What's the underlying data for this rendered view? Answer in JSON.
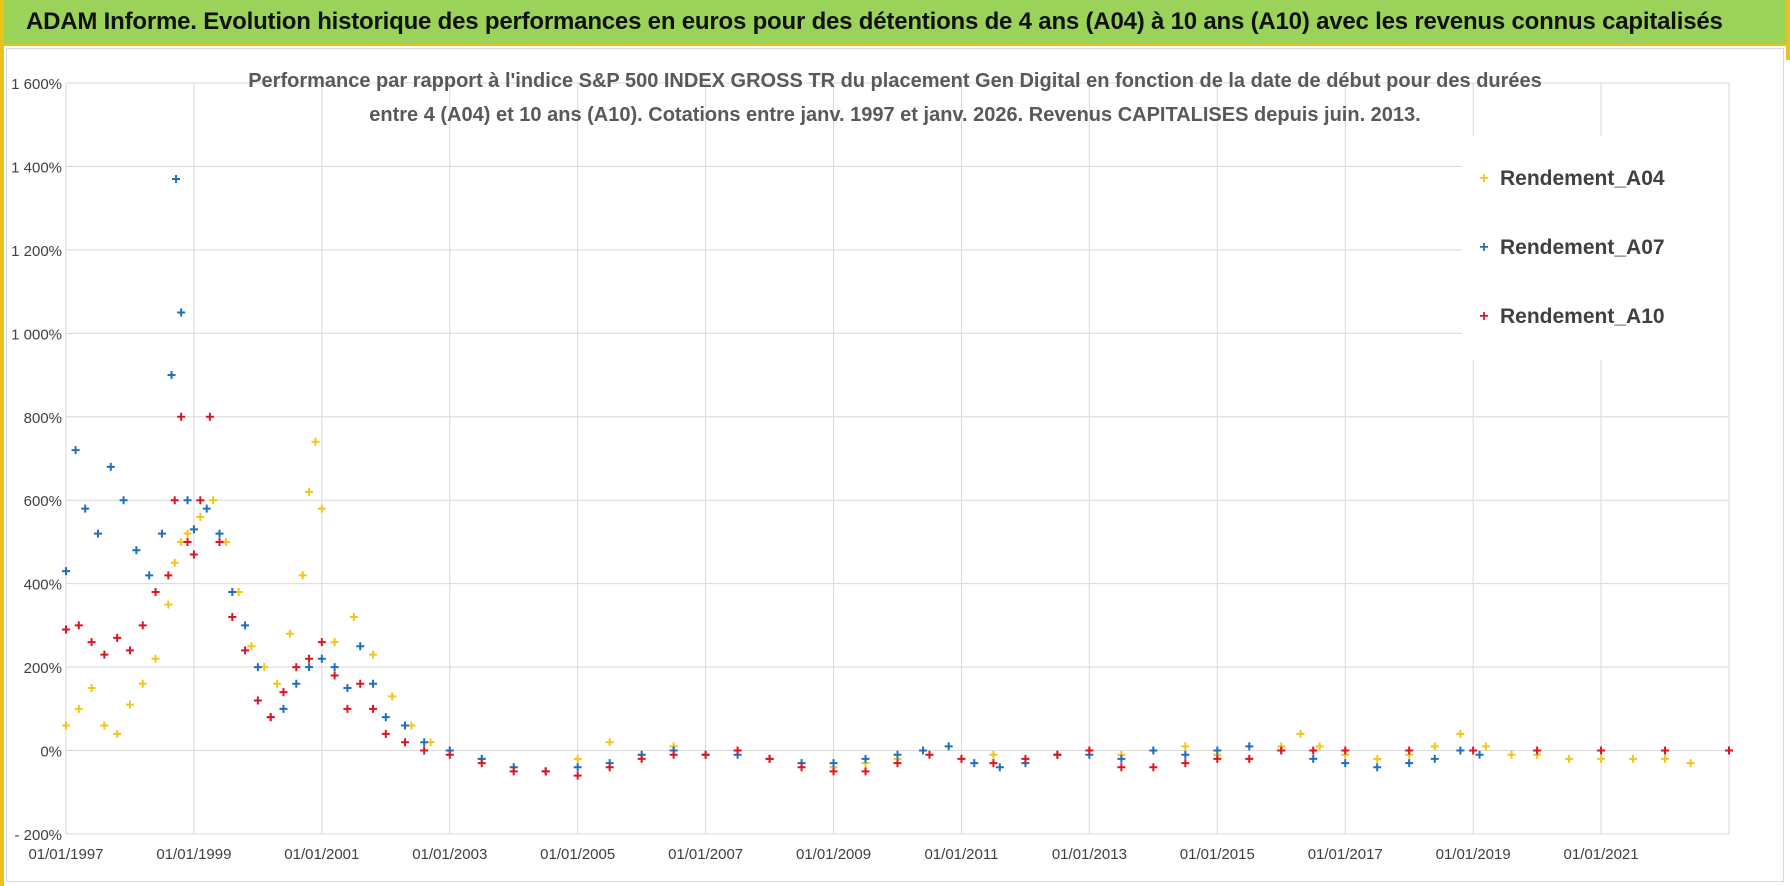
{
  "header": {
    "title": "ADAM Informe. Evolution historique des performances en euros pour des détentions de 4 ans (A04) à 10 ans (A10) avec les revenus connus capitalisés"
  },
  "chart_data": {
    "type": "scatter",
    "title_line1": "Performance par rapport à l'indice S&P 500 INDEX GROSS TR  du placement Gen Digital en fonction de la date de début pour des durées",
    "title_line2": "entre 4 (A04) et 10 ans (A10).  Cotations entre janv. 1997 et janv. 2026. Revenus CAPITALISES depuis juin. 2013.",
    "xlabel": "",
    "ylabel": "",
    "x_range": [
      "01/01/1997",
      "01/01/2023"
    ],
    "x_tick_labels": [
      "01/01/1997",
      "01/01/1999",
      "01/01/2001",
      "01/01/2003",
      "01/01/2005",
      "01/01/2007",
      "01/01/2009",
      "01/01/2011",
      "01/01/2013",
      "01/01/2015",
      "01/01/2017",
      "01/01/2019",
      "01/01/2021"
    ],
    "x_tick_years": [
      1997,
      1999,
      2001,
      2003,
      2005,
      2007,
      2009,
      2011,
      2013,
      2015,
      2017,
      2019,
      2021
    ],
    "ylim": [
      -200,
      1600
    ],
    "y_ticks": [
      -200,
      0,
      200,
      400,
      600,
      800,
      1000,
      1200,
      1400,
      1600
    ],
    "y_tick_labels": [
      "- 200%",
      "0%",
      "200%",
      "400%",
      "600%",
      "800%",
      "1 000%",
      "1 200%",
      "1 400%",
      "1 600%"
    ],
    "grid": true,
    "legend_position": "top-right",
    "marker": "+",
    "series": [
      {
        "name": "Rendement_A04",
        "color": "#f5c518",
        "x": [
          1997.0,
          1997.2,
          1997.4,
          1997.6,
          1997.8,
          1998.0,
          1998.2,
          1998.4,
          1998.6,
          1998.7,
          1998.8,
          1998.9,
          1999.0,
          1999.1,
          1999.3,
          1999.5,
          1999.7,
          1999.9,
          2000.1,
          2000.3,
          2000.5,
          2000.7,
          2000.8,
          2000.9,
          2001.0,
          2001.2,
          2001.5,
          2001.8,
          2002.1,
          2002.4,
          2002.7,
          2003.0,
          2003.5,
          2004.0,
          2004.5,
          2005.0,
          2005.5,
          2006.0,
          2006.5,
          2007.0,
          2007.5,
          2008.0,
          2008.5,
          2009.0,
          2009.5,
          2010.0,
          2010.5,
          2011.0,
          2011.5,
          2012.0,
          2012.5,
          2013.0,
          2013.5,
          2014.0,
          2014.5,
          2015.0,
          2015.5,
          2016.0,
          2016.3,
          2016.6,
          2017.0,
          2017.5,
          2018.0,
          2018.4,
          2018.8,
          2019.2,
          2019.6,
          2020.0,
          2020.5,
          2021.0,
          2021.5,
          2022.0,
          2022.4
        ],
        "y": [
          60,
          100,
          150,
          60,
          40,
          110,
          160,
          220,
          350,
          450,
          500,
          520,
          530,
          560,
          600,
          500,
          380,
          250,
          200,
          160,
          280,
          420,
          620,
          740,
          580,
          260,
          320,
          230,
          130,
          60,
          20,
          0,
          -20,
          -40,
          -50,
          -20,
          20,
          -10,
          10,
          -10,
          0,
          -20,
          -30,
          -40,
          -30,
          -20,
          -10,
          -20,
          -10,
          -20,
          -10,
          0,
          -10,
          0,
          10,
          -10,
          -20,
          10,
          40,
          10,
          -10,
          -20,
          -10,
          10,
          40,
          10,
          -10,
          -10,
          -20,
          -20,
          -20,
          -20,
          -30
        ]
      },
      {
        "name": "Rendement_A07",
        "color": "#1f6fc0",
        "x": [
          1997.0,
          1997.15,
          1997.3,
          1997.5,
          1997.7,
          1997.9,
          1998.1,
          1998.3,
          1998.5,
          1998.65,
          1998.72,
          1998.8,
          1998.9,
          1999.0,
          1999.2,
          1999.4,
          1999.6,
          1999.8,
          2000.0,
          2000.2,
          2000.4,
          2000.6,
          2000.8,
          2001.0,
          2001.2,
          2001.4,
          2001.6,
          2001.8,
          2002.0,
          2002.3,
          2002.6,
          2003.0,
          2003.5,
          2004.0,
          2004.5,
          2005.0,
          2005.5,
          2006.0,
          2006.5,
          2007.0,
          2007.5,
          2008.0,
          2008.5,
          2009.0,
          2009.5,
          2010.0,
          2010.4,
          2010.8,
          2011.2,
          2011.6,
          2012.0,
          2012.5,
          2013.0,
          2013.5,
          2014.0,
          2014.5,
          2015.0,
          2015.5,
          2016.0,
          2016.5,
          2017.0,
          2017.5,
          2018.0,
          2018.4,
          2018.8,
          2019.1
        ],
        "y": [
          430,
          720,
          580,
          520,
          680,
          600,
          480,
          420,
          520,
          900,
          1370,
          1050,
          600,
          530,
          580,
          520,
          380,
          300,
          200,
          80,
          100,
          160,
          200,
          220,
          200,
          150,
          250,
          160,
          80,
          60,
          20,
          0,
          -20,
          -40,
          -50,
          -40,
          -30,
          -10,
          0,
          -10,
          -10,
          -20,
          -30,
          -30,
          -20,
          -10,
          0,
          10,
          -30,
          -40,
          -30,
          -10,
          -10,
          -20,
          0,
          -10,
          0,
          10,
          0,
          -20,
          -30,
          -40,
          -30,
          -20,
          0,
          -10
        ]
      },
      {
        "name": "Rendement_A10",
        "color": "#e0141e",
        "x": [
          1997.0,
          1997.2,
          1997.4,
          1997.6,
          1997.8,
          1998.0,
          1998.2,
          1998.4,
          1998.6,
          1998.7,
          1998.8,
          1998.9,
          1999.0,
          1999.1,
          1999.25,
          1999.4,
          1999.6,
          1999.8,
          2000.0,
          2000.2,
          2000.4,
          2000.6,
          2000.8,
          2001.0,
          2001.2,
          2001.4,
          2001.6,
          2001.8,
          2002.0,
          2002.3,
          2002.6,
          2003.0,
          2003.5,
          2004.0,
          2004.5,
          2005.0,
          2005.5,
          2006.0,
          2006.5,
          2007.0,
          2007.5,
          2008.0,
          2008.5,
          2009.0,
          2009.5,
          2010.0,
          2010.5,
          2011.0,
          2011.5,
          2012.0,
          2012.5,
          2013.0,
          2013.5,
          2014.0,
          2014.5,
          2015.0,
          2015.5,
          2016.0,
          2016.5,
          2017.0,
          2018.0,
          2019.0,
          2020.0,
          2021.0,
          2022.0,
          2023.0
        ],
        "y": [
          290,
          300,
          260,
          230,
          270,
          240,
          300,
          380,
          420,
          600,
          800,
          500,
          470,
          600,
          800,
          500,
          320,
          240,
          120,
          80,
          140,
          200,
          220,
          260,
          180,
          100,
          160,
          100,
          40,
          20,
          0,
          -10,
          -30,
          -50,
          -50,
          -60,
          -40,
          -20,
          -10,
          -10,
          0,
          -20,
          -40,
          -50,
          -50,
          -30,
          -10,
          -20,
          -30,
          -20,
          -10,
          0,
          -40,
          -40,
          -30,
          -20,
          -20,
          0,
          0,
          0,
          0,
          0,
          0,
          0,
          0,
          0
        ]
      }
    ]
  }
}
